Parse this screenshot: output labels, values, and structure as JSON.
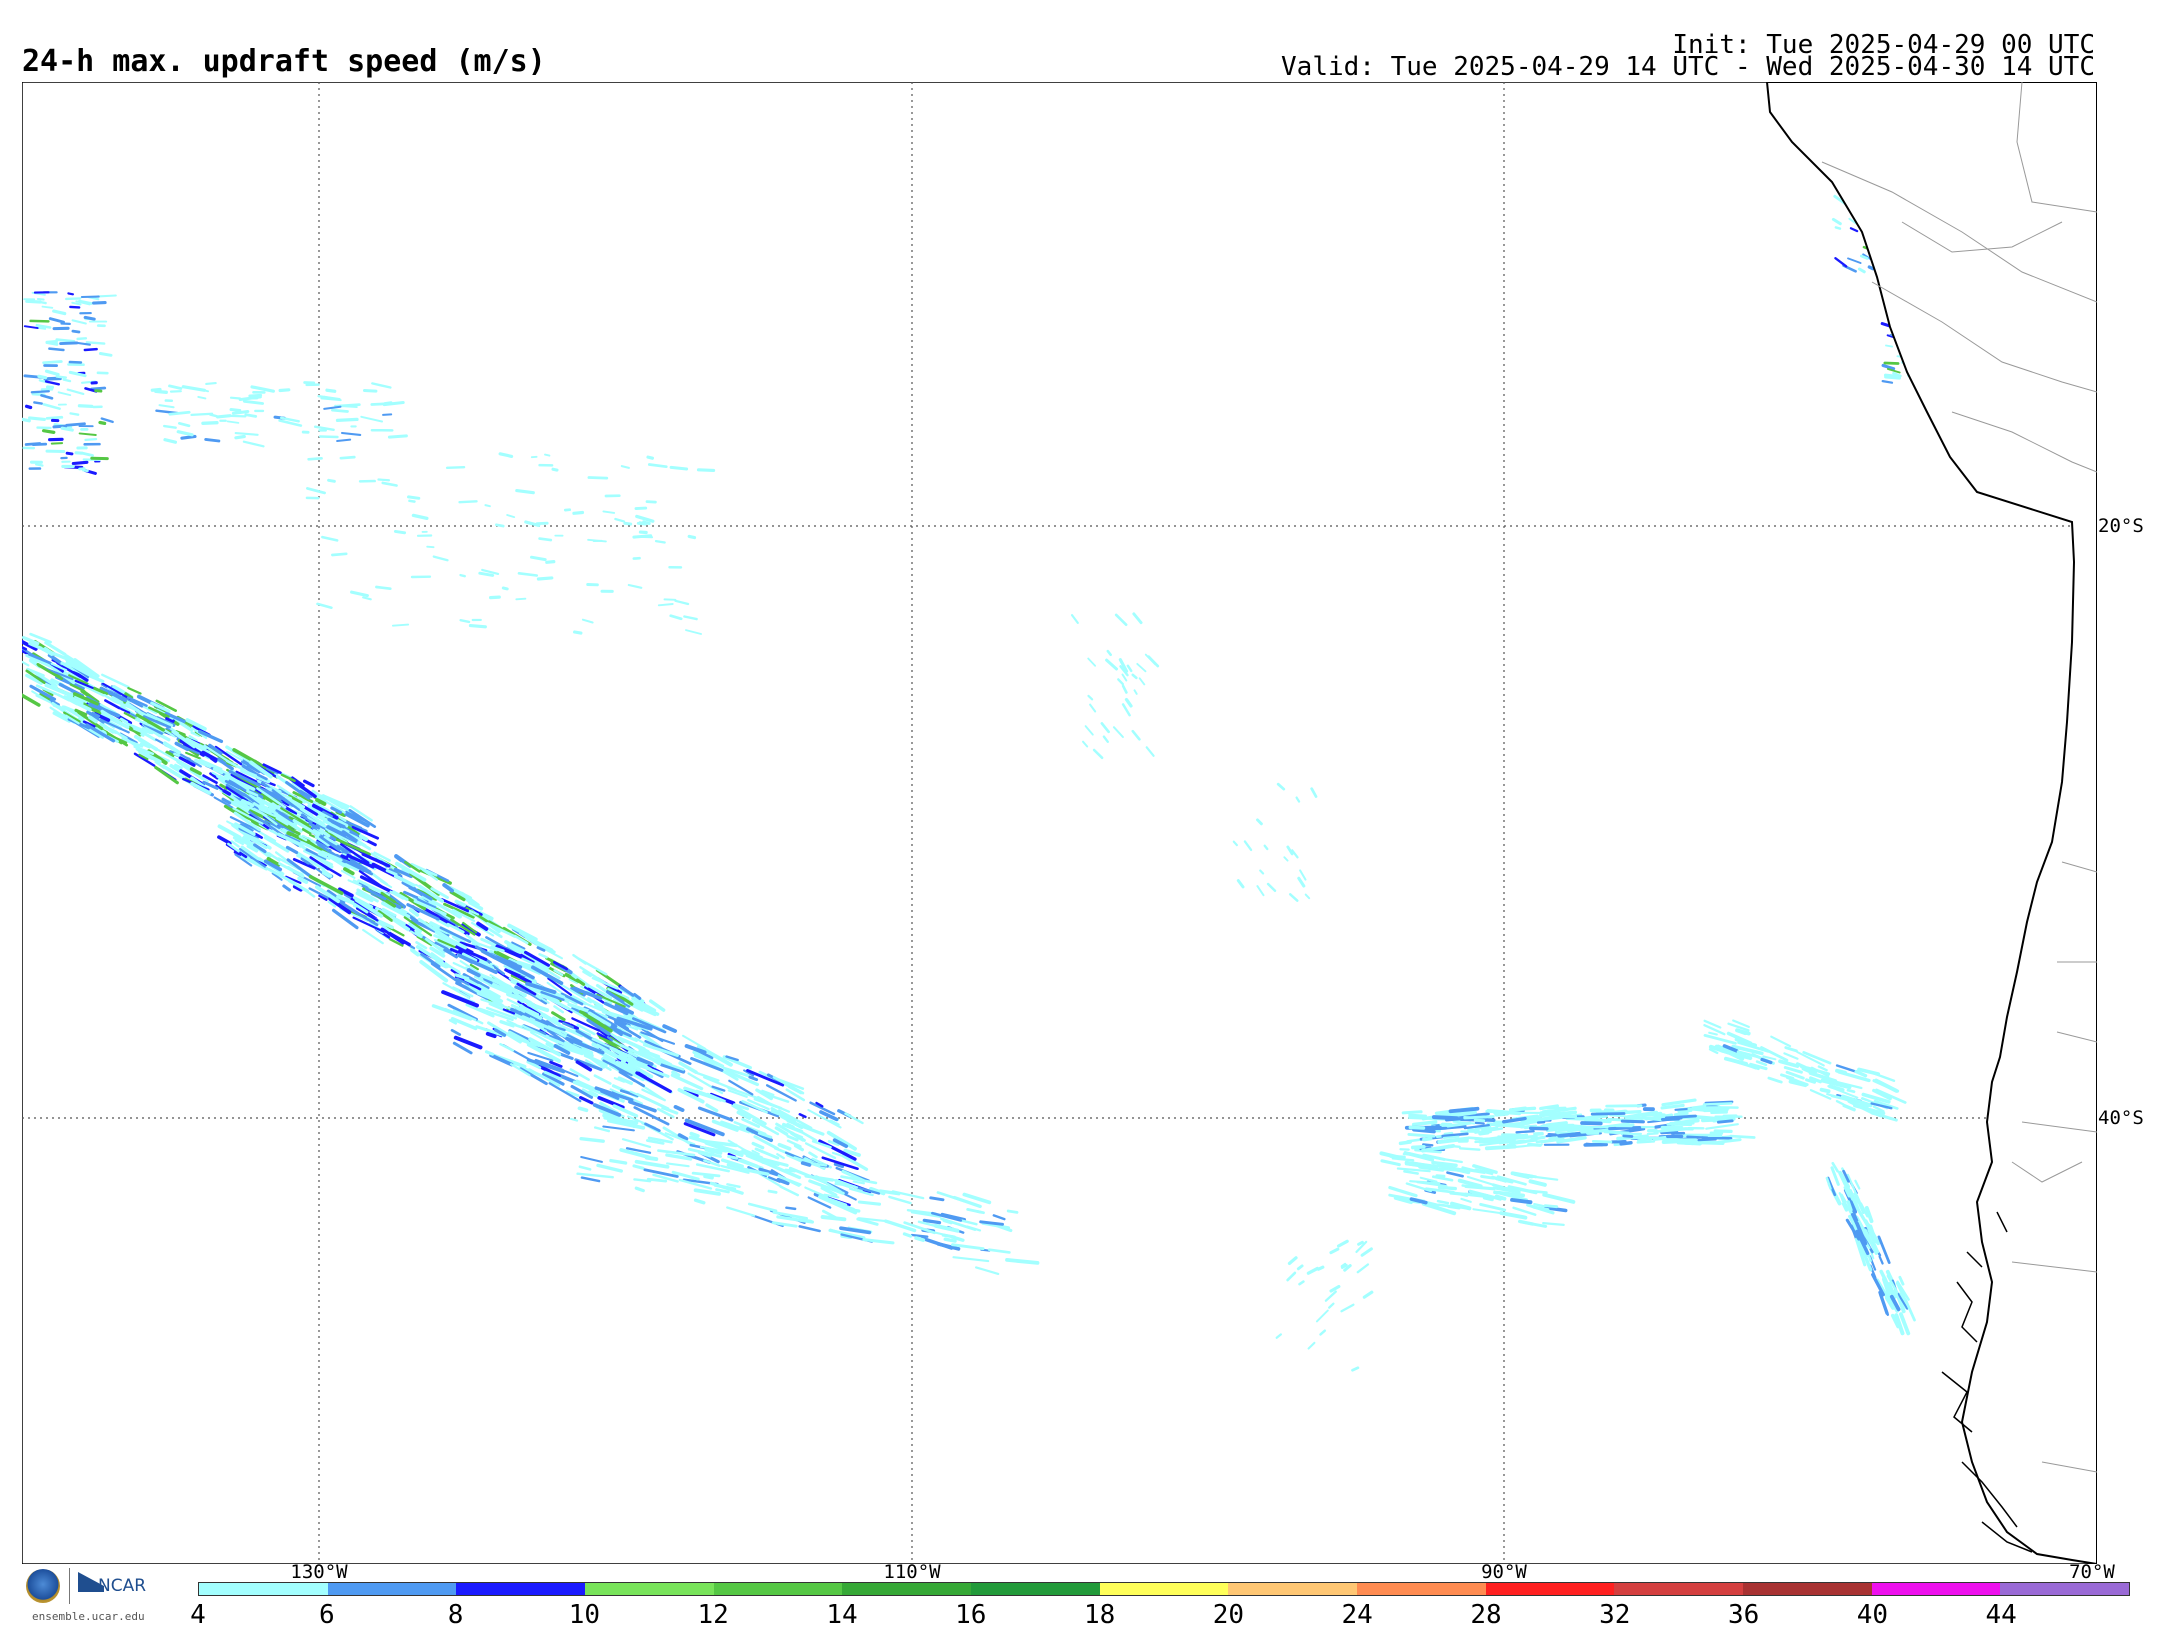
{
  "header": {
    "title": "24-h max. updraft speed (m/s)",
    "init": "Init: Tue 2025-04-29 00 UTC",
    "valid": "Valid: Tue 2025-04-29 14 UTC - Wed 2025-04-30 14 UTC"
  },
  "map": {
    "longitude_labels": [
      "130°W",
      "110°W",
      "90°W",
      "70°W"
    ],
    "latitude_labels": [
      "20°S",
      "40°S"
    ],
    "gridlines": "dotted"
  },
  "colorbar": {
    "ticks": [
      "4",
      "6",
      "8",
      "10",
      "12",
      "14",
      "16",
      "18",
      "20",
      "24",
      "28",
      "32",
      "36",
      "40",
      "44"
    ],
    "colors": [
      "#a3ffff",
      "#4f9af2",
      "#1a1aff",
      "#78e35a",
      "#55c744",
      "#36a836",
      "#229a3a",
      "#ffff5a",
      "#ffc774",
      "#ff8c52",
      "#ff2020",
      "#d43f3f",
      "#a83232",
      "#ee10ee",
      "#9a6ad6"
    ]
  },
  "footer": {
    "logos": [
      "nsf-logo",
      "ncar-logo"
    ],
    "ncar_text": "NCAR",
    "url": "ensemble.ucar.edu"
  }
}
